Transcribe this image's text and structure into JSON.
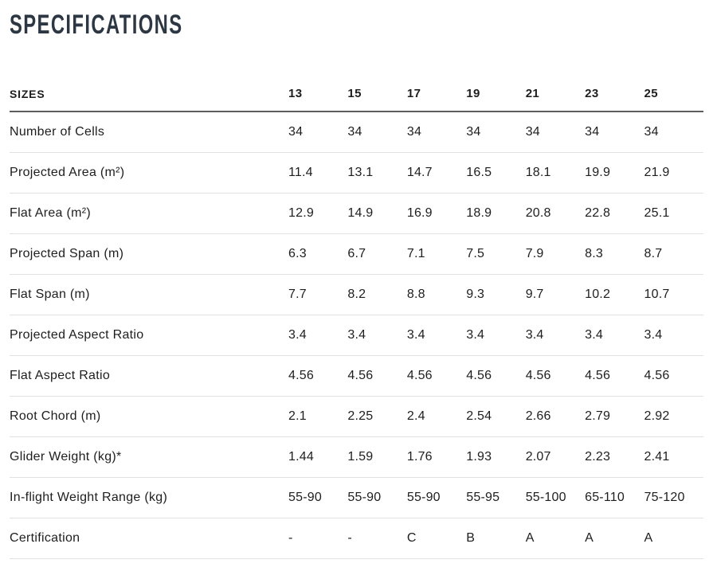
{
  "page": {
    "title": "SPECIFICATIONS"
  },
  "table": {
    "header": {
      "label": "SIZES",
      "columns": [
        "13",
        "15",
        "17",
        "19",
        "21",
        "23",
        "25"
      ]
    },
    "rows": [
      {
        "label": "Number of Cells",
        "values": [
          "34",
          "34",
          "34",
          "34",
          "34",
          "34",
          "34"
        ]
      },
      {
        "label": "Projected Area (m²)",
        "values": [
          "11.4",
          "13.1",
          "14.7",
          "16.5",
          "18.1",
          "19.9",
          "21.9"
        ]
      },
      {
        "label": "Flat Area (m²)",
        "values": [
          "12.9",
          "14.9",
          "16.9",
          "18.9",
          "20.8",
          "22.8",
          "25.1"
        ]
      },
      {
        "label": "Projected Span (m)",
        "values": [
          "6.3",
          "6.7",
          "7.1",
          "7.5",
          "7.9",
          "8.3",
          "8.7"
        ]
      },
      {
        "label": "Flat Span (m)",
        "values": [
          "7.7",
          "8.2",
          "8.8",
          "9.3",
          "9.7",
          "10.2",
          "10.7"
        ]
      },
      {
        "label": "Projected Aspect Ratio",
        "values": [
          "3.4",
          "3.4",
          "3.4",
          "3.4",
          "3.4",
          "3.4",
          "3.4"
        ]
      },
      {
        "label": "Flat Aspect Ratio",
        "values": [
          "4.56",
          "4.56",
          "4.56",
          "4.56",
          "4.56",
          "4.56",
          "4.56"
        ]
      },
      {
        "label": "Root Chord (m)",
        "values": [
          "2.1",
          "2.25",
          "2.4",
          "2.54",
          "2.66",
          "2.79",
          "2.92"
        ]
      },
      {
        "label": "Glider Weight (kg)*",
        "values": [
          "1.44",
          "1.59",
          "1.76",
          "1.93",
          "2.07",
          "2.23",
          "2.41"
        ]
      },
      {
        "label": "In-flight Weight Range (kg)",
        "values": [
          "55-90",
          "55-90",
          "55-90",
          "55-95",
          "55-100",
          "65-110",
          "75-120"
        ]
      },
      {
        "label": "Certification",
        "values": [
          "-",
          "-",
          "C",
          "B",
          "A",
          "A",
          "A"
        ]
      }
    ]
  },
  "colors": {
    "background": "#ffffff",
    "text": "#1e1e1e",
    "title": "#2c3743",
    "header_divider": "#5b5c5e",
    "row_divider": "#e1e1e1"
  }
}
